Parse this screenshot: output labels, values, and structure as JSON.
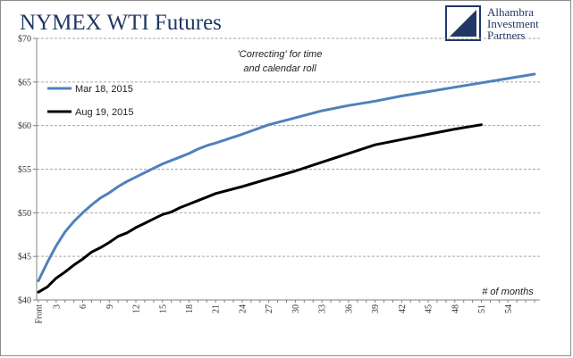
{
  "header": {
    "title": "NYMEX WTI Futures"
  },
  "logo": {
    "lines": [
      "Alhambra",
      "Investment",
      "Partners"
    ],
    "accent": "#1f3864"
  },
  "chart_data": {
    "type": "line",
    "title": "NYMEX WTI Futures",
    "xlabel": "# of months",
    "ylabel": "",
    "ylim": [
      40,
      70
    ],
    "yticks": [
      40,
      45,
      50,
      55,
      60,
      65,
      70
    ],
    "ytick_labels": [
      "$40",
      "$45",
      "$50",
      "$55",
      "$60",
      "$65",
      "$70"
    ],
    "xlim": [
      1,
      57
    ],
    "xticks": [
      1,
      3,
      6,
      9,
      12,
      15,
      18,
      21,
      24,
      27,
      30,
      33,
      36,
      39,
      42,
      45,
      48,
      51,
      54
    ],
    "xtick_labels": [
      "Front",
      "3",
      "6",
      "9",
      "12",
      "15",
      "18",
      "21",
      "24",
      "27",
      "30",
      "33",
      "36",
      "39",
      "42",
      "45",
      "48",
      "51",
      "54"
    ],
    "grid": "horizontal dashed",
    "legend_position": "top-left",
    "annotation": [
      "'Correcting' for time",
      "and calendar roll"
    ],
    "series": [
      {
        "name": "Mar 18, 2015",
        "color": "#4f81bd",
        "x": [
          1,
          2,
          3,
          4,
          5,
          6,
          7,
          8,
          9,
          10,
          11,
          12,
          13,
          14,
          15,
          16,
          17,
          18,
          19,
          20,
          21,
          24,
          27,
          30,
          33,
          36,
          39,
          42,
          45,
          48,
          51,
          54,
          57
        ],
        "y": [
          42.2,
          44.3,
          46.2,
          47.8,
          49.0,
          50.0,
          50.9,
          51.7,
          52.3,
          53.0,
          53.6,
          54.1,
          54.6,
          55.1,
          55.6,
          56.0,
          56.4,
          56.8,
          57.3,
          57.7,
          58.0,
          59.0,
          60.1,
          60.9,
          61.7,
          62.3,
          62.8,
          63.4,
          63.9,
          64.4,
          64.9,
          65.4,
          65.9
        ]
      },
      {
        "name": "Aug 19, 2015",
        "color": "#000000",
        "x": [
          1,
          2,
          3,
          4,
          5,
          6,
          7,
          8,
          9,
          10,
          11,
          12,
          13,
          14,
          15,
          16,
          17,
          18,
          19,
          20,
          21,
          24,
          27,
          30,
          33,
          36,
          39,
          42,
          45,
          48,
          51
        ],
        "y": [
          40.9,
          41.5,
          42.5,
          43.2,
          44.0,
          44.7,
          45.5,
          46.0,
          46.6,
          47.3,
          47.7,
          48.3,
          48.8,
          49.3,
          49.8,
          50.1,
          50.6,
          51.0,
          51.4,
          51.8,
          52.2,
          53.0,
          53.9,
          54.8,
          55.8,
          56.8,
          57.8,
          58.4,
          59.0,
          59.6,
          60.1
        ]
      }
    ]
  }
}
